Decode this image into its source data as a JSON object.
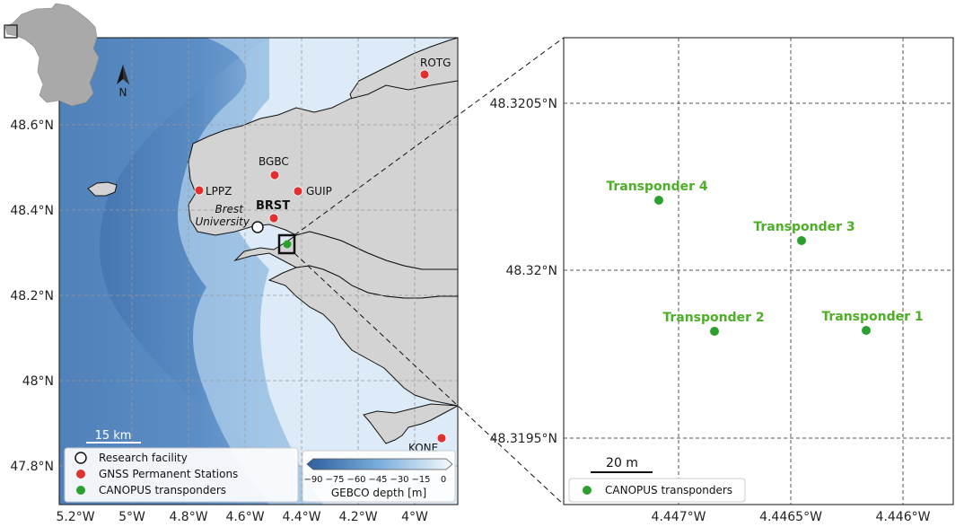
{
  "left_map": {
    "lat_ticks": [
      "48.6°N",
      "48.4°N",
      "48.2°N",
      "48°N",
      "47.8°N"
    ],
    "lon_ticks": [
      "5.2°W",
      "5°W",
      "4.8°W",
      "4.6°W",
      "4.4°W",
      "4.2°W",
      "4°W"
    ],
    "north_label": "N",
    "stations": [
      {
        "label": "ROTG",
        "lon": -3.95,
        "lat": 48.72
      },
      {
        "label": "BGBC",
        "lon": -4.48,
        "lat": 48.48
      },
      {
        "label": "LPPZ",
        "lon": -4.78,
        "lat": 48.45
      },
      {
        "label": "GUIP",
        "lon": -4.39,
        "lat": 48.45
      },
      {
        "label": "BRST",
        "lon": -4.49,
        "lat": 48.38
      },
      {
        "label": "KONE",
        "lon": -3.9,
        "lat": 47.87
      }
    ],
    "research_facility": {
      "label_line1": "Brest",
      "label_line2": "University",
      "lon": -4.56,
      "lat": 48.36
    },
    "transponder_site": {
      "lon": -4.447,
      "lat": 48.32
    },
    "scale_bar_label": "15 km",
    "legend": [
      {
        "label": "Research facility",
        "color": "#ffffff"
      },
      {
        "label": "GNSS Permanent Stations",
        "color": "#e03030"
      },
      {
        "label": "CANOPUS transponders",
        "color": "#2ca02c"
      }
    ],
    "colorbar": {
      "ticks": [
        "−90",
        "−75",
        "−60",
        "−45",
        "−30",
        "−15",
        "0"
      ],
      "label": "GEBCO depth [m]"
    }
  },
  "right_map": {
    "lat_ticks": [
      "48.3205°N",
      "48.32°N",
      "48.3195°N"
    ],
    "lon_ticks": [
      "4.447°W",
      "4.4465°W",
      "4.446°W"
    ],
    "transponders": [
      {
        "label": "Transponder 4",
        "lon": -4.44716,
        "lat": 48.32021
      },
      {
        "label": "Transponder 3",
        "lon": -4.44649,
        "lat": 48.32009
      },
      {
        "label": "Transponder 2",
        "lon": -4.4469,
        "lat": 48.31982
      },
      {
        "label": "Transponder 1",
        "lon": -4.44619,
        "lat": 48.31982
      }
    ],
    "scale_bar_label": "20 m",
    "legend_label": "CANOPUS transponders"
  },
  "colors": {
    "land": "#d3d3d3",
    "deep_sea": "#4a7ab3",
    "shallow_sea": "#e8f1fa",
    "station": "#e03030",
    "transponder": "#2ca02c",
    "transponder_text": "#4caf26"
  }
}
